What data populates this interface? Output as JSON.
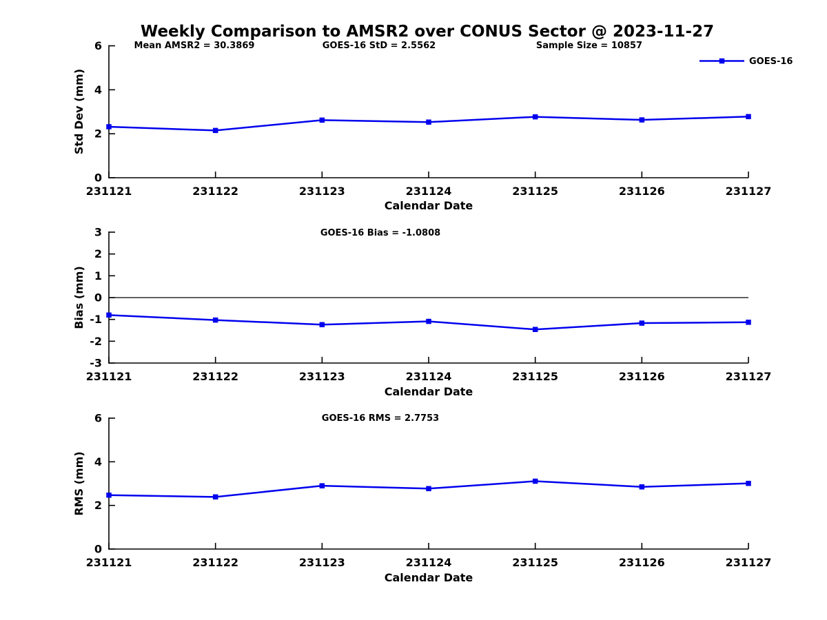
{
  "title": "Weekly Comparison to AMSR2 over CONUS Sector @ 2023-11-27",
  "colors": {
    "series": "#0000EE",
    "axis": "#000000",
    "text": "#000000",
    "background": "#ffffff"
  },
  "legend": {
    "label": "GOES-16"
  },
  "categories": [
    "231121",
    "231122",
    "231123",
    "231124",
    "231125",
    "231126",
    "231127"
  ],
  "chart_data": [
    {
      "type": "line",
      "title": "",
      "xlabel": "Calendar Date",
      "ylabel": "Std Dev (mm)",
      "ylim": [
        0,
        6
      ],
      "yticks": [
        0,
        2,
        4,
        6
      ],
      "grid": false,
      "legend_position": "top-right",
      "categories": [
        "231121",
        "231122",
        "231123",
        "231124",
        "231125",
        "231126",
        "231127"
      ],
      "series": [
        {
          "name": "GOES-16",
          "values": [
            2.32,
            2.15,
            2.62,
            2.53,
            2.77,
            2.63,
            2.78
          ]
        }
      ],
      "annotations": [
        "Mean AMSR2 = 30.3869",
        "GOES-16 StD = 2.5562",
        "Sample Size = 10857"
      ]
    },
    {
      "type": "line",
      "title": "",
      "xlabel": "Calendar Date",
      "ylabel": "Bias (mm)",
      "ylim": [
        -3,
        3
      ],
      "yticks": [
        3,
        2,
        1,
        0,
        -1,
        -2,
        -3
      ],
      "zero_line": true,
      "grid": false,
      "categories": [
        "231121",
        "231122",
        "231123",
        "231124",
        "231125",
        "231126",
        "231127"
      ],
      "series": [
        {
          "name": "GOES-16",
          "values": [
            -0.8,
            -1.03,
            -1.24,
            -1.09,
            -1.46,
            -1.17,
            -1.13
          ]
        }
      ],
      "annotations": [
        "GOES-16 Bias  = -1.0808"
      ]
    },
    {
      "type": "line",
      "title": "",
      "xlabel": "Calendar Date",
      "ylabel": "RMS (mm)",
      "ylim": [
        0,
        6
      ],
      "yticks": [
        0,
        2,
        4,
        6
      ],
      "grid": false,
      "categories": [
        "231121",
        "231122",
        "231123",
        "231124",
        "231125",
        "231126",
        "231127"
      ],
      "series": [
        {
          "name": "GOES-16",
          "values": [
            2.47,
            2.39,
            2.9,
            2.77,
            3.11,
            2.85,
            3.01
          ]
        }
      ],
      "annotations": [
        "GOES-16 RMS = 2.7753"
      ]
    }
  ]
}
